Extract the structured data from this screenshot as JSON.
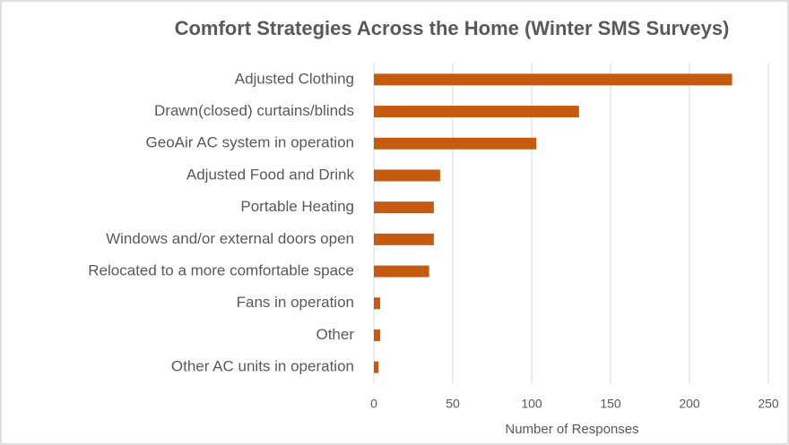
{
  "chart_data": {
    "type": "bar",
    "orientation": "horizontal",
    "title": "Comfort Strategies Across the Home  (Winter SMS Surveys)",
    "x_label": "Number of Responses",
    "categories": [
      "Adjusted Clothing",
      "Drawn(closed) curtains/blinds",
      "GeoAir AC system in operation",
      "Adjusted Food and Drink",
      "Portable Heating",
      "Windows and/or external doors open",
      "Relocated to a more comfortable space",
      "Fans in operation",
      "Other",
      "Other AC units in operation"
    ],
    "values": [
      227,
      130,
      103,
      42,
      38,
      38,
      35,
      4,
      4,
      3
    ],
    "color": "#c55a11",
    "xlim": [
      0,
      250
    ],
    "xticks": [
      0,
      50,
      100,
      150,
      200,
      250
    ],
    "grid": true
  }
}
